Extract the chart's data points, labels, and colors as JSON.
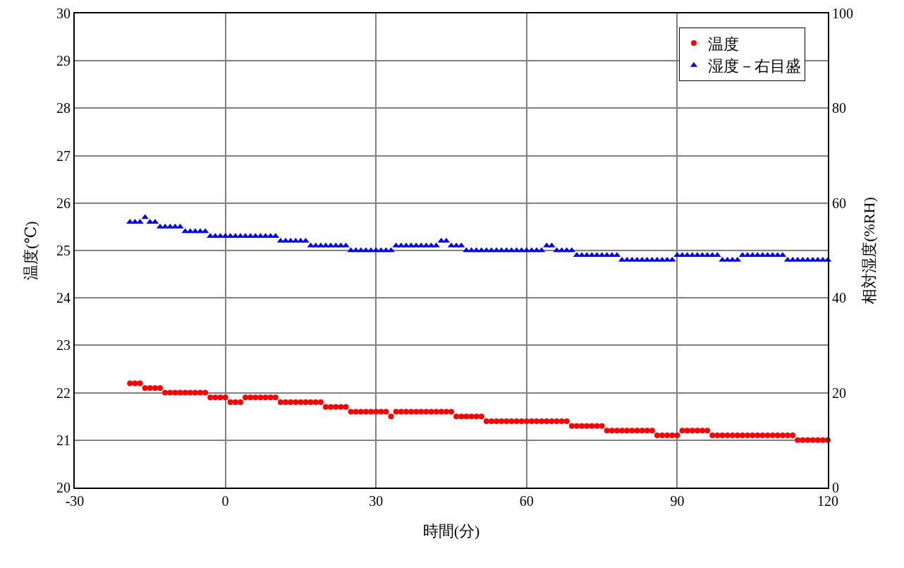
{
  "chart_data": {
    "type": "scatter",
    "xlabel": "時間(分)",
    "ylabel": "温度(℃)",
    "y2label": "相対湿度(%RH)",
    "x": [
      -19,
      -18,
      -17,
      -16,
      -15,
      -14,
      -13,
      -12,
      -11,
      -10,
      -9,
      -8,
      -7,
      -6,
      -5,
      -4,
      -3,
      -2,
      -1,
      0,
      1,
      2,
      3,
      4,
      5,
      6,
      7,
      8,
      9,
      10,
      11,
      12,
      13,
      14,
      15,
      16,
      17,
      18,
      19,
      20,
      21,
      22,
      23,
      24,
      25,
      26,
      27,
      28,
      29,
      30,
      31,
      32,
      33,
      34,
      35,
      36,
      37,
      38,
      39,
      40,
      41,
      42,
      43,
      44,
      45,
      46,
      47,
      48,
      49,
      50,
      51,
      52,
      53,
      54,
      55,
      56,
      57,
      58,
      59,
      60,
      61,
      62,
      63,
      64,
      65,
      66,
      67,
      68,
      69,
      70,
      71,
      72,
      73,
      74,
      75,
      76,
      77,
      78,
      79,
      80,
      81,
      82,
      83,
      84,
      85,
      86,
      87,
      88,
      89,
      90,
      91,
      92,
      93,
      94,
      95,
      96,
      97,
      98,
      99,
      100,
      101,
      102,
      103,
      104,
      105,
      106,
      107,
      108,
      109,
      110,
      111,
      112,
      113,
      114,
      115,
      116,
      117,
      118,
      119,
      120
    ],
    "series": [
      {
        "name": "温度",
        "color": "#ff0000",
        "marker": "circle",
        "values": [
          22.2,
          22.2,
          22.2,
          22.1,
          22.1,
          22.1,
          22.1,
          22.0,
          22.0,
          22.0,
          22.0,
          22.0,
          22.0,
          22.0,
          22.0,
          22.0,
          21.9,
          21.9,
          21.9,
          21.9,
          21.8,
          21.8,
          21.8,
          21.9,
          21.9,
          21.9,
          21.9,
          21.9,
          21.9,
          21.9,
          21.8,
          21.8,
          21.8,
          21.8,
          21.8,
          21.8,
          21.8,
          21.8,
          21.8,
          21.7,
          21.7,
          21.7,
          21.7,
          21.7,
          21.6,
          21.6,
          21.6,
          21.6,
          21.6,
          21.6,
          21.6,
          21.6,
          21.5,
          21.6,
          21.6,
          21.6,
          21.6,
          21.6,
          21.6,
          21.6,
          21.6,
          21.6,
          21.6,
          21.6,
          21.6,
          21.5,
          21.5,
          21.5,
          21.5,
          21.5,
          21.5,
          21.4,
          21.4,
          21.4,
          21.4,
          21.4,
          21.4,
          21.4,
          21.4,
          21.4,
          21.4,
          21.4,
          21.4,
          21.4,
          21.4,
          21.4,
          21.4,
          21.4,
          21.3,
          21.3,
          21.3,
          21.3,
          21.3,
          21.3,
          21.3,
          21.2,
          21.2,
          21.2,
          21.2,
          21.2,
          21.2,
          21.2,
          21.2,
          21.2,
          21.2,
          21.1,
          21.1,
          21.1,
          21.1,
          21.1,
          21.2,
          21.2,
          21.2,
          21.2,
          21.2,
          21.2,
          21.1,
          21.1,
          21.1,
          21.1,
          21.1,
          21.1,
          21.1,
          21.1,
          21.1,
          21.1,
          21.1,
          21.1,
          21.1,
          21.1,
          21.1,
          21.1,
          21.1,
          21.0,
          21.0,
          21.0,
          21.0,
          21.0,
          21.0,
          21.0
        ]
      },
      {
        "name": "湿度－右目盛",
        "color": "#0000ff",
        "marker": "triangle",
        "axis": "y2",
        "values": [
          56,
          56,
          56,
          57,
          56,
          56,
          55,
          55,
          55,
          55,
          55,
          54,
          54,
          54,
          54,
          54,
          53,
          53,
          53,
          53,
          53,
          53,
          53,
          53,
          53,
          53,
          53,
          53,
          53,
          53,
          52,
          52,
          52,
          52,
          52,
          52,
          51,
          51,
          51,
          51,
          51,
          51,
          51,
          51,
          50,
          50,
          50,
          50,
          50,
          50,
          50,
          50,
          50,
          51,
          51,
          51,
          51,
          51,
          51,
          51,
          51,
          51,
          52,
          52,
          51,
          51,
          51,
          50,
          50,
          50,
          50,
          50,
          50,
          50,
          50,
          50,
          50,
          50,
          50,
          50,
          50,
          50,
          50,
          51,
          51,
          50,
          50,
          50,
          50,
          49,
          49,
          49,
          49,
          49,
          49,
          49,
          49,
          49,
          48,
          48,
          48,
          48,
          48,
          48,
          48,
          48,
          48,
          48,
          48,
          49,
          49,
          49,
          49,
          49,
          49,
          49,
          49,
          49,
          48,
          48,
          48,
          48,
          49,
          49,
          49,
          49,
          49,
          49,
          49,
          49,
          49,
          48,
          48,
          48,
          48,
          48,
          48,
          48,
          48,
          48
        ]
      }
    ],
    "xlim": [
      -30,
      120
    ],
    "xticks": [
      -30,
      0,
      30,
      60,
      90,
      120
    ],
    "ylim": [
      20,
      30
    ],
    "yticks": [
      20,
      21,
      22,
      23,
      24,
      25,
      26,
      27,
      28,
      29,
      30
    ],
    "y2lim": [
      0,
      100
    ],
    "y2ticks": [
      0,
      20,
      40,
      60,
      80,
      100
    ],
    "grid": true,
    "legend": "top right"
  }
}
